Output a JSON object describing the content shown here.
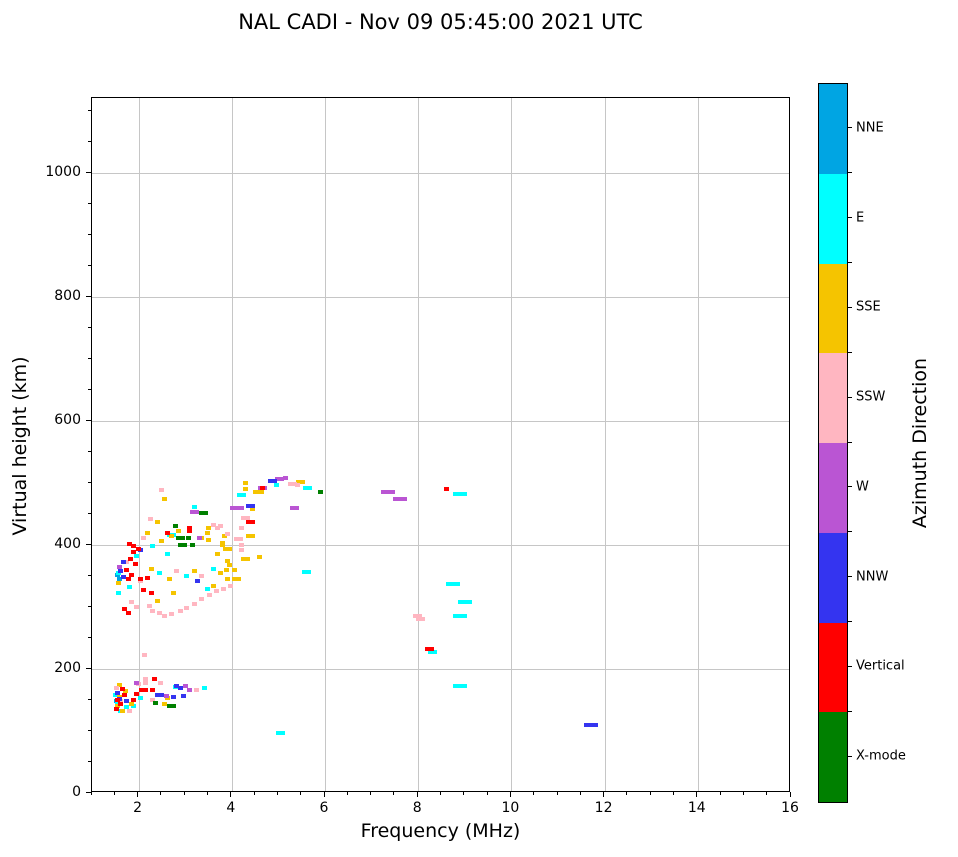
{
  "title": "NAL CADI - Nov 09 05:45:00 2021 UTC",
  "chart_data": {
    "type": "scatter",
    "title": "NAL CADI - Nov 09 05:45:00 2021 UTC",
    "xlabel": "Frequency (MHz)",
    "ylabel": "Virtual height (km)",
    "xlim": [
      1,
      16
    ],
    "ylim": [
      0,
      1121
    ],
    "xticks": [
      2,
      4,
      6,
      8,
      10,
      12,
      14,
      16
    ],
    "yticks": [
      0,
      200,
      400,
      600,
      800,
      1000
    ],
    "x_minor_step": 0.5,
    "y_minor_step": 50,
    "grid": true,
    "grid_color": "#c6c6c6",
    "colorbar": {
      "label": "Azimuth Direction",
      "categories_top_to_bottom": [
        {
          "name": "NNE",
          "color": "#00A5E3"
        },
        {
          "name": "E",
          "color": "#00FFFF"
        },
        {
          "name": "SSE",
          "color": "#F5C400"
        },
        {
          "name": "SSW",
          "color": "#FFB6C1"
        },
        {
          "name": "W",
          "color": "#BA55D3"
        },
        {
          "name": "NNW",
          "color": "#3434F0"
        },
        {
          "name": "Vertical",
          "color": "#FF0000"
        },
        {
          "name": "X-mode",
          "color": "#008000"
        }
      ]
    },
    "series": [
      {
        "name": "NNE",
        "color": "#00A5E3",
        "points": [
          [
            1.55,
            352
          ],
          [
            1.58,
            345
          ],
          [
            1.52,
            148
          ]
        ]
      },
      {
        "name": "E",
        "color": "#00FFFF",
        "points": [
          [
            1.95,
            382
          ],
          [
            1.57,
            355
          ],
          [
            1.8,
            333
          ],
          [
            1.57,
            322
          ],
          [
            2.7,
            416,
            2
          ],
          [
            3.2,
            462
          ],
          [
            2.45,
            355
          ],
          [
            3.03,
            350
          ],
          [
            3.6,
            361
          ],
          [
            2.3,
            398
          ],
          [
            4.2,
            480,
            2
          ],
          [
            4.95,
            497
          ],
          [
            5.63,
            492,
            2
          ],
          [
            5.6,
            356,
            2
          ],
          [
            5.05,
            96,
            2
          ],
          [
            8.9,
            482,
            3
          ],
          [
            8.75,
            337,
            3
          ],
          [
            9.0,
            308,
            3
          ],
          [
            8.9,
            285,
            3
          ],
          [
            8.9,
            172,
            3
          ],
          [
            8.3,
            228,
            2
          ],
          [
            2.8,
            171
          ],
          [
            2.05,
            153
          ],
          [
            1.55,
            145
          ],
          [
            1.62,
            132
          ],
          [
            1.75,
            138
          ],
          [
            1.5,
            158
          ],
          [
            3.47,
            329
          ],
          [
            2.62,
            385
          ],
          [
            1.9,
            140
          ],
          [
            3.42,
            169
          ]
        ]
      },
      {
        "name": "SSE",
        "color": "#F5C400",
        "points": [
          [
            1.57,
            338
          ],
          [
            2.28,
            361
          ],
          [
            2.67,
            345
          ],
          [
            3.2,
            358
          ],
          [
            3.75,
            355
          ],
          [
            3.9,
            345
          ],
          [
            2.5,
            406
          ],
          [
            2.7,
            415
          ],
          [
            3.47,
            419
          ],
          [
            2.4,
            437
          ],
          [
            2.55,
            475
          ],
          [
            2.85,
            422
          ],
          [
            3.5,
            427
          ],
          [
            3.5,
            408
          ],
          [
            3.8,
            404
          ],
          [
            3.85,
            415
          ],
          [
            3.9,
            393,
            2
          ],
          [
            3.9,
            375
          ],
          [
            3.95,
            367
          ],
          [
            3.88,
            359
          ],
          [
            4.05,
            359
          ],
          [
            4.1,
            345,
            2
          ],
          [
            4.3,
            378,
            2
          ],
          [
            4.6,
            380
          ],
          [
            4.4,
            414,
            2
          ],
          [
            3.7,
            385
          ],
          [
            3.8,
            400
          ],
          [
            4.3,
            500
          ],
          [
            4.3,
            490
          ],
          [
            4.5,
            486
          ],
          [
            4.6,
            485,
            2
          ],
          [
            5.48,
            501,
            2
          ],
          [
            4.45,
            458
          ],
          [
            2.55,
            143
          ],
          [
            1.6,
            175
          ],
          [
            1.55,
            140
          ],
          [
            1.65,
            133
          ],
          [
            1.72,
            165
          ],
          [
            1.85,
            143
          ],
          [
            1.58,
            155
          ],
          [
            2.4,
            310
          ],
          [
            2.75,
            322
          ],
          [
            3.6,
            334
          ],
          [
            2.2,
            420
          ],
          [
            3.36,
            412
          ],
          [
            2.62,
            153
          ]
        ]
      },
      {
        "name": "SSW",
        "color": "#FFB6C1",
        "points": [
          [
            2.13,
            222
          ],
          [
            2.15,
            184
          ],
          [
            2.15,
            177
          ],
          [
            2.5,
            488
          ],
          [
            2.25,
            442
          ],
          [
            3.6,
            433
          ],
          [
            3.7,
            427
          ],
          [
            3.9,
            418
          ],
          [
            4.15,
            410,
            2
          ],
          [
            3.75,
            430
          ],
          [
            4.2,
            428
          ],
          [
            4.3,
            444,
            2
          ],
          [
            4.2,
            400
          ],
          [
            4.2,
            392
          ],
          [
            5.3,
            498,
            2
          ],
          [
            5.4,
            496
          ],
          [
            7.98,
            286,
            2
          ],
          [
            8.05,
            281,
            2
          ],
          [
            2.23,
            302
          ],
          [
            2.3,
            294
          ],
          [
            2.45,
            290
          ],
          [
            2.55,
            285
          ],
          [
            2.7,
            289
          ],
          [
            2.9,
            294
          ],
          [
            3.03,
            298
          ],
          [
            3.2,
            305
          ],
          [
            3.36,
            313
          ],
          [
            3.53,
            319
          ],
          [
            3.68,
            326
          ],
          [
            3.83,
            329
          ],
          [
            3.97,
            334
          ],
          [
            2.82,
            358
          ],
          [
            3.36,
            350
          ],
          [
            2.05,
            342
          ],
          [
            1.74,
            373
          ],
          [
            2.1,
            411
          ],
          [
            1.95,
            300
          ],
          [
            1.85,
            308
          ],
          [
            2.0,
            176
          ],
          [
            1.62,
            148
          ],
          [
            1.8,
            132
          ],
          [
            3.25,
            166
          ],
          [
            2.3,
            150
          ],
          [
            1.52,
            170
          ],
          [
            2.48,
            178
          ]
        ]
      },
      {
        "name": "W",
        "color": "#BA55D3",
        "points": [
          [
            3.2,
            453,
            2
          ],
          [
            3.3,
            412
          ],
          [
            4.12,
            460,
            3
          ],
          [
            5.35,
            459,
            2
          ],
          [
            5.03,
            506,
            2
          ],
          [
            5.15,
            508
          ],
          [
            4.66,
            492,
            2
          ],
          [
            7.35,
            485,
            3
          ],
          [
            7.6,
            475,
            3
          ],
          [
            3.0,
            172
          ],
          [
            3.1,
            166
          ],
          [
            2.6,
            156
          ],
          [
            1.95,
            178
          ],
          [
            1.6,
            365
          ]
        ]
      },
      {
        "name": "NNW",
        "color": "#3434F0",
        "points": [
          [
            1.62,
            358
          ],
          [
            1.68,
            348
          ],
          [
            3.27,
            342
          ],
          [
            4.4,
            463,
            2
          ],
          [
            4.87,
            503,
            2
          ],
          [
            11.7,
            110,
            3
          ],
          [
            2.45,
            158,
            2
          ],
          [
            2.9,
            169
          ],
          [
            2.82,
            172
          ],
          [
            1.75,
            148
          ],
          [
            1.6,
            152
          ],
          [
            1.55,
            162
          ],
          [
            2.75,
            155
          ],
          [
            2.97,
            156
          ],
          [
            1.68,
            372
          ],
          [
            2.05,
            392
          ]
        ]
      },
      {
        "name": "Vertical",
        "color": "#FF0000",
        "points": [
          [
            1.8,
            402
          ],
          [
            1.9,
            398
          ],
          [
            2.0,
            394
          ],
          [
            1.82,
            378
          ],
          [
            1.9,
            388
          ],
          [
            1.75,
            360
          ],
          [
            1.85,
            352
          ],
          [
            1.78,
            345
          ],
          [
            2.1,
            328
          ],
          [
            2.2,
            347
          ],
          [
            2.28,
            322
          ],
          [
            2.62,
            419
          ],
          [
            3.1,
            428
          ],
          [
            3.1,
            422
          ],
          [
            4.4,
            437,
            2
          ],
          [
            4.66,
            492
          ],
          [
            2.35,
            184
          ],
          [
            2.1,
            166,
            2
          ],
          [
            2.3,
            166
          ],
          [
            1.55,
            150
          ],
          [
            1.62,
            143
          ],
          [
            1.7,
            158
          ],
          [
            1.52,
            135
          ],
          [
            1.65,
            168
          ],
          [
            1.88,
            150
          ],
          [
            1.95,
            160
          ],
          [
            8.25,
            233,
            2
          ],
          [
            8.6,
            490
          ],
          [
            1.7,
            297
          ],
          [
            1.78,
            290
          ],
          [
            1.93,
            370
          ],
          [
            2.05,
            345
          ]
        ]
      },
      {
        "name": "X-mode",
        "color": "#008000",
        "points": [
          [
            2.37,
            145
          ],
          [
            2.7,
            140,
            2
          ],
          [
            3.4,
            452,
            2
          ],
          [
            2.8,
            430
          ],
          [
            2.9,
            412,
            2
          ],
          [
            3.08,
            412
          ],
          [
            2.95,
            400,
            2
          ],
          [
            3.15,
            400
          ],
          [
            5.9,
            486
          ]
        ]
      }
    ]
  }
}
